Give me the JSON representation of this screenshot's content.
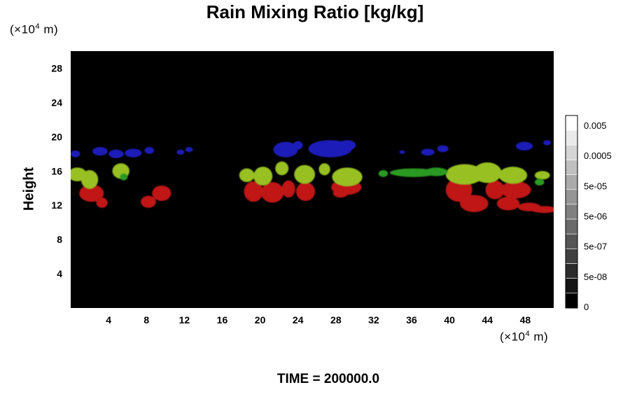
{
  "chart_data": {
    "type": "heatmap",
    "title": "Rain Mixing Ratio [kg/kg]",
    "ylabel": "Height",
    "xlabel": "",
    "x_unit": {
      "base": "(×10",
      "exp": "4",
      "tail": " m)"
    },
    "y_unit": {
      "base": "(×10",
      "exp": "4",
      "tail": " m)"
    },
    "xlim": [
      0,
      51
    ],
    "ylim": [
      0,
      30
    ],
    "x_ticks": [
      4,
      8,
      12,
      16,
      20,
      24,
      28,
      32,
      36,
      40,
      44,
      48
    ],
    "y_ticks": [
      4,
      8,
      12,
      16,
      20,
      24,
      28
    ],
    "background_color": "#000000",
    "footer": "TIME = 200000.0",
    "colorbar": {
      "labels": [
        "0.005",
        "0.0005",
        "5e-05",
        "5e-06",
        "5e-07",
        "5e-08",
        "0"
      ],
      "label_values": [
        0.005,
        0.0005,
        5e-05,
        5e-06,
        5e-07,
        5e-08,
        0
      ],
      "levels": 13,
      "color_dark": "#000000",
      "color_light": "#ffffff"
    },
    "regions": [
      {
        "color": "#c01515",
        "band": "low",
        "blobs": [
          [
            2.2,
            13.4,
            1.3,
            1.0
          ],
          [
            3.3,
            12.3,
            0.6,
            0.6
          ],
          [
            8.2,
            12.4,
            0.8,
            0.7
          ],
          [
            9.6,
            13.4,
            1.0,
            0.9
          ],
          [
            19.3,
            13.6,
            1.0,
            1.2
          ],
          [
            21.3,
            13.5,
            1.2,
            1.2
          ],
          [
            23.0,
            13.9,
            0.7,
            1.0
          ],
          [
            24.8,
            13.6,
            1.0,
            1.1
          ],
          [
            29.1,
            14.1,
            1.6,
            0.9
          ],
          [
            28.5,
            13.4,
            0.8,
            0.5
          ],
          [
            41.0,
            13.8,
            1.4,
            1.4
          ],
          [
            42.6,
            12.2,
            1.5,
            1.0
          ],
          [
            44.8,
            13.8,
            1.0,
            1.1
          ],
          [
            47.0,
            13.8,
            1.6,
            1.0
          ],
          [
            46.2,
            12.2,
            1.2,
            0.8
          ],
          [
            48.4,
            11.8,
            1.2,
            0.5
          ],
          [
            50.0,
            11.5,
            1.4,
            0.4
          ]
        ]
      },
      {
        "color": "#98c020",
        "band": "mid",
        "blobs": [
          [
            0.7,
            15.6,
            1.0,
            0.8
          ],
          [
            2.0,
            15.0,
            0.9,
            1.1
          ],
          [
            5.3,
            16.0,
            0.9,
            0.9
          ],
          [
            18.6,
            15.5,
            0.8,
            0.8
          ],
          [
            20.3,
            15.4,
            1.0,
            1.1
          ],
          [
            22.3,
            16.3,
            0.7,
            0.8
          ],
          [
            24.7,
            15.6,
            1.1,
            1.1
          ],
          [
            26.8,
            16.2,
            0.6,
            0.7
          ],
          [
            29.2,
            15.3,
            1.6,
            1.1
          ],
          [
            41.6,
            15.6,
            2.0,
            1.2
          ],
          [
            44.0,
            15.8,
            1.5,
            1.2
          ],
          [
            46.7,
            15.5,
            1.5,
            1.0
          ],
          [
            49.8,
            15.5,
            0.8,
            0.5
          ]
        ]
      },
      {
        "color": "#2c9a22",
        "band": "mid",
        "blobs": [
          [
            36.2,
            15.8,
            2.5,
            0.5
          ],
          [
            33.0,
            15.7,
            0.5,
            0.4
          ],
          [
            38.6,
            15.9,
            1.2,
            0.5
          ],
          [
            5.6,
            15.3,
            0.4,
            0.4
          ],
          [
            49.5,
            14.7,
            0.5,
            0.4
          ]
        ]
      },
      {
        "color": "#1c1cb8",
        "band": "high",
        "blobs": [
          [
            0.5,
            18.0,
            0.5,
            0.4
          ],
          [
            3.1,
            18.3,
            0.8,
            0.5
          ],
          [
            4.8,
            18.0,
            0.8,
            0.5
          ],
          [
            6.6,
            18.1,
            0.9,
            0.5
          ],
          [
            8.3,
            18.4,
            0.5,
            0.4
          ],
          [
            11.6,
            18.2,
            0.4,
            0.3
          ],
          [
            12.5,
            18.5,
            0.4,
            0.3
          ],
          [
            22.7,
            18.5,
            1.3,
            0.9
          ],
          [
            24.0,
            19.0,
            0.5,
            0.5
          ],
          [
            27.4,
            18.6,
            2.3,
            1.0
          ],
          [
            29.2,
            19.0,
            0.9,
            0.6
          ],
          [
            37.7,
            18.2,
            0.7,
            0.4
          ],
          [
            39.3,
            18.6,
            0.6,
            0.4
          ],
          [
            47.9,
            18.9,
            0.9,
            0.5
          ],
          [
            50.3,
            19.3,
            0.4,
            0.3
          ],
          [
            35.0,
            18.2,
            0.3,
            0.2
          ]
        ]
      }
    ]
  }
}
